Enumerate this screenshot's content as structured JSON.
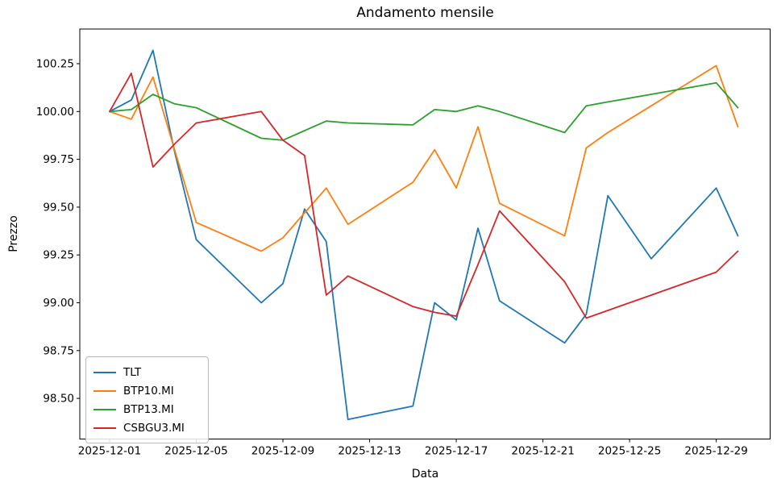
{
  "figure": {
    "title": "Andamento mensile",
    "xlabel": "Data",
    "ylabel": "Prezzo"
  },
  "chart_data": {
    "type": "line",
    "title": "Andamento mensile",
    "xlabel": "Data",
    "ylabel": "Prezzo",
    "grid": false,
    "legend_position": "lower left",
    "x_dates": [
      "2025-12-01",
      "2025-12-02",
      "2025-12-03",
      "2025-12-04",
      "2025-12-05",
      "2025-12-08",
      "2025-12-09",
      "2025-12-10",
      "2025-12-11",
      "2025-12-12",
      "2025-12-15",
      "2025-12-16",
      "2025-12-17",
      "2025-12-18",
      "2025-12-19",
      "2025-12-22",
      "2025-12-23",
      "2025-12-24",
      "2025-12-26",
      "2025-12-29",
      "2025-12-30"
    ],
    "x_tick_labels": [
      "2025-12-01",
      "2025-12-05",
      "2025-12-09",
      "2025-12-13",
      "2025-12-17",
      "2025-12-21",
      "2025-12-25",
      "2025-12-29"
    ],
    "y_tick_labels": [
      "98.50",
      "98.75",
      "99.00",
      "99.25",
      "99.50",
      "99.75",
      "100.00",
      "100.25"
    ],
    "y_ticks": [
      98.5,
      98.75,
      99.0,
      99.25,
      99.5,
      99.75,
      100.0,
      100.25
    ],
    "ylim": [
      98.287,
      100.431
    ],
    "series": [
      {
        "name": "TLT",
        "color": "#1f77b4",
        "values": [
          100.0,
          100.06,
          100.32,
          99.79,
          99.33,
          99.0,
          99.1,
          99.49,
          99.32,
          98.39,
          98.46,
          99.0,
          98.91,
          99.39,
          99.01,
          98.79,
          98.94,
          99.56,
          99.23,
          99.6,
          99.35
        ]
      },
      {
        "name": "BTP10.MI",
        "color": "#ff7f0e",
        "values": [
          100.0,
          99.96,
          100.18,
          99.8,
          99.42,
          99.27,
          99.34,
          99.47,
          99.6,
          99.41,
          99.63,
          99.8,
          99.6,
          99.92,
          99.52,
          99.35,
          99.81,
          99.89,
          100.03,
          100.24,
          99.92
        ]
      },
      {
        "name": "BTP13.MI",
        "color": "#2ca02c",
        "values": [
          100.0,
          100.01,
          100.09,
          100.04,
          100.02,
          99.86,
          99.85,
          99.9,
          99.95,
          99.94,
          99.93,
          100.01,
          100.0,
          100.03,
          100.0,
          99.89,
          100.03,
          100.05,
          100.09,
          100.15,
          100.02
        ]
      },
      {
        "name": "CSBGU3.MI",
        "color": "#d62728",
        "values": [
          100.0,
          100.2,
          99.71,
          99.83,
          99.94,
          100.0,
          99.85,
          99.77,
          99.04,
          99.14,
          98.98,
          98.95,
          98.93,
          99.2,
          99.48,
          99.11,
          98.92,
          98.96,
          99.04,
          99.16,
          99.27
        ]
      }
    ]
  }
}
